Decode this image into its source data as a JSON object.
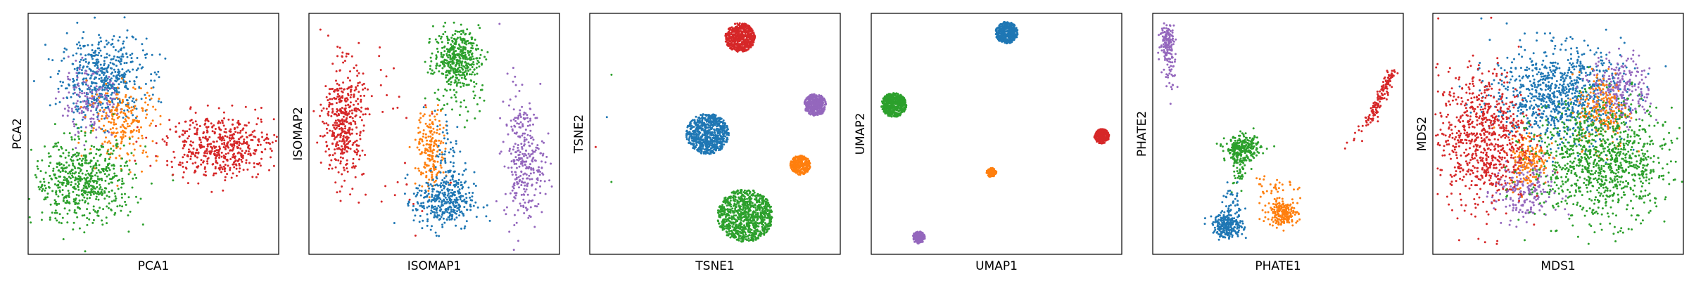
{
  "colors": {
    "blue": "#1f77b4",
    "orange": "#ff7f0e",
    "green": "#2ca02c",
    "red": "#d62728",
    "purple": "#9467bd"
  },
  "chart_data": [
    {
      "type": "scatter",
      "xlabel": "PCA1",
      "ylabel": "PCA2",
      "xlim": [
        0,
        100
      ],
      "ylim": [
        0,
        100
      ],
      "grid": false,
      "legend": "none",
      "clusters": [
        {
          "color": "blue",
          "cx": 30,
          "cy": 73,
          "sx": 8.5,
          "sy": 8.5,
          "n": 520,
          "shape": "gauss"
        },
        {
          "color": "purple",
          "cx": 25,
          "cy": 62,
          "sx": 6,
          "sy": 7,
          "n": 160,
          "shape": "gauss"
        },
        {
          "color": "orange",
          "cx": 38,
          "cy": 55,
          "sx": 7,
          "sy": 8,
          "n": 220,
          "shape": "gauss"
        },
        {
          "color": "green",
          "cx": 22,
          "cy": 30,
          "sx": 10,
          "sy": 8.5,
          "n": 600,
          "shape": "gauss"
        },
        {
          "color": "red",
          "cx": 77,
          "cy": 45,
          "sx": 11,
          "sy": 6.5,
          "n": 520,
          "shape": "gauss"
        }
      ]
    },
    {
      "type": "scatter",
      "xlabel": "ISOMAP1",
      "ylabel": "ISOMAP2",
      "xlim": [
        0,
        100
      ],
      "ylim": [
        0,
        100
      ],
      "grid": false,
      "legend": "none",
      "clusters": [
        {
          "color": "red",
          "cx": 14,
          "cy": 55,
          "sx": 4,
          "sy": 12,
          "n": 420,
          "shape": "gauss"
        },
        {
          "color": "red",
          "cx": 30,
          "cy": 48,
          "sx": 12,
          "sy": 28,
          "n": 40,
          "shape": "gauss"
        },
        {
          "color": "green",
          "cx": 59,
          "cy": 82,
          "sx": 4.5,
          "sy": 5.5,
          "n": 380,
          "shape": "gauss"
        },
        {
          "color": "green",
          "cx": 60,
          "cy": 70,
          "sx": 5,
          "sy": 8,
          "n": 70,
          "shape": "gauss"
        },
        {
          "color": "orange",
          "cx": 49,
          "cy": 43,
          "sx": 3,
          "sy": 8,
          "n": 200,
          "shape": "gauss"
        },
        {
          "color": "blue",
          "cx": 54,
          "cy": 22,
          "sx": 6,
          "sy": 6,
          "n": 360,
          "shape": "gauss"
        },
        {
          "color": "blue",
          "cx": 56,
          "cy": 40,
          "sx": 3,
          "sy": 10,
          "n": 60,
          "shape": "gauss"
        },
        {
          "color": "purple",
          "cx": 86,
          "cy": 38,
          "sx": 4,
          "sy": 12,
          "n": 280,
          "shape": "gauss"
        },
        {
          "color": "purple",
          "cx": 82,
          "cy": 60,
          "sx": 3,
          "sy": 10,
          "n": 30,
          "shape": "gauss"
        }
      ]
    },
    {
      "type": "scatter",
      "xlabel": "TSNE1",
      "ylabel": "TSNE2",
      "xlim": [
        0,
        100
      ],
      "ylim": [
        0,
        100
      ],
      "grid": false,
      "legend": "none",
      "clusters": [
        {
          "color": "red",
          "cx": 60,
          "cy": 90,
          "r": 6,
          "n": 520,
          "shape": "disk"
        },
        {
          "color": "purple",
          "cx": 90,
          "cy": 62,
          "r": 4.5,
          "n": 380,
          "shape": "disk"
        },
        {
          "color": "blue",
          "cx": 47,
          "cy": 50,
          "r": 8.5,
          "n": 700,
          "shape": "disk"
        },
        {
          "color": "orange",
          "cx": 84,
          "cy": 37,
          "r": 4,
          "n": 300,
          "shape": "disk"
        },
        {
          "color": "green",
          "cx": 62,
          "cy": 16,
          "r": 11,
          "n": 900,
          "shape": "disk"
        },
        {
          "color": "green",
          "cx": 10,
          "cy": 75,
          "sx": 1,
          "sy": 1,
          "n": 1,
          "shape": "gauss"
        },
        {
          "color": "green",
          "cx": 8,
          "cy": 30,
          "sx": 1,
          "sy": 1,
          "n": 1,
          "shape": "gauss"
        },
        {
          "color": "red",
          "cx": 4,
          "cy": 45,
          "sx": 1,
          "sy": 1,
          "n": 1,
          "shape": "gauss"
        },
        {
          "color": "blue",
          "cx": 7,
          "cy": 56,
          "sx": 1,
          "sy": 1,
          "n": 1,
          "shape": "gauss"
        }
      ]
    },
    {
      "type": "scatter",
      "xlabel": "UMAP1",
      "ylabel": "UMAP2",
      "xlim": [
        0,
        100
      ],
      "ylim": [
        0,
        100
      ],
      "grid": false,
      "legend": "none",
      "clusters": [
        {
          "color": "blue",
          "cx": 54,
          "cy": 92,
          "r": 4.5,
          "n": 450,
          "shape": "disk"
        },
        {
          "color": "green",
          "cx": 9,
          "cy": 62,
          "r": 5,
          "n": 500,
          "shape": "disk"
        },
        {
          "color": "red",
          "cx": 92,
          "cy": 49,
          "r": 3,
          "n": 260,
          "shape": "disk"
        },
        {
          "color": "orange",
          "cx": 48,
          "cy": 34,
          "r": 2,
          "n": 90,
          "shape": "disk"
        },
        {
          "color": "purple",
          "cx": 19,
          "cy": 7,
          "r": 2.5,
          "n": 150,
          "shape": "disk"
        }
      ]
    },
    {
      "type": "scatter",
      "xlabel": "PHATE1",
      "ylabel": "PHATE2",
      "xlim": [
        0,
        100
      ],
      "ylim": [
        0,
        100
      ],
      "grid": false,
      "legend": "none",
      "clusters": [
        {
          "color": "purple",
          "cx": 6,
          "cy": 88,
          "sx": 1.5,
          "sy": 4,
          "n": 140,
          "shape": "gauss"
        },
        {
          "color": "purple",
          "cx": 7,
          "cy": 76,
          "sx": 1.6,
          "sy": 4,
          "n": 30,
          "shape": "gauss"
        },
        {
          "color": "red",
          "cx": 91,
          "cy": 62,
          "x1": 86,
          "y1": 55,
          "x2": 96,
          "y2": 76,
          "w": 1.2,
          "n": 140,
          "shape": "line"
        },
        {
          "color": "red",
          "cx": 83,
          "cy": 50,
          "x1": 78,
          "y1": 46,
          "x2": 86,
          "y2": 55,
          "w": 1.5,
          "n": 12,
          "shape": "line"
        },
        {
          "color": "green",
          "cx": 36,
          "cy": 44,
          "sx": 3.5,
          "sy": 2.5,
          "n": 260,
          "shape": "gauss"
        },
        {
          "color": "green",
          "cx": 34,
          "cy": 35,
          "sx": 1.5,
          "sy": 5,
          "n": 60,
          "shape": "gauss"
        },
        {
          "color": "blue",
          "cx": 30,
          "cy": 12,
          "sx": 3,
          "sy": 2.5,
          "n": 240,
          "shape": "gauss"
        },
        {
          "color": "blue",
          "cx": 32,
          "cy": 20,
          "sx": 2,
          "sy": 4,
          "n": 40,
          "shape": "gauss"
        },
        {
          "color": "orange",
          "cx": 52,
          "cy": 17,
          "sx": 3,
          "sy": 2.5,
          "n": 200,
          "shape": "gauss"
        },
        {
          "color": "orange",
          "cx": 48,
          "cy": 28,
          "sx": 4,
          "sy": 4,
          "n": 40,
          "shape": "gauss"
        }
      ]
    },
    {
      "type": "scatter",
      "xlabel": "MDS1",
      "ylabel": "MDS2",
      "xlim": [
        0,
        100
      ],
      "ylim": [
        0,
        100
      ],
      "grid": false,
      "legend": "none",
      "clusters": [
        {
          "color": "blue",
          "cx": 50,
          "cy": 66,
          "sx": 13,
          "sy": 10,
          "n": 900,
          "shape": "gauss"
        },
        {
          "color": "purple",
          "cx": 75,
          "cy": 68,
          "sx": 6,
          "sy": 7,
          "n": 260,
          "shape": "gauss"
        },
        {
          "color": "purple",
          "cx": 36,
          "cy": 26,
          "sx": 6,
          "sy": 7,
          "n": 220,
          "shape": "gauss"
        },
        {
          "color": "orange",
          "cx": 68,
          "cy": 60,
          "sx": 5,
          "sy": 8,
          "n": 200,
          "shape": "gauss"
        },
        {
          "color": "orange",
          "cx": 38,
          "cy": 40,
          "sx": 4,
          "sy": 6,
          "n": 160,
          "shape": "gauss"
        },
        {
          "color": "red",
          "cx": 20,
          "cy": 48,
          "sx": 9,
          "sy": 14,
          "n": 780,
          "shape": "gauss"
        },
        {
          "color": "green",
          "cx": 68,
          "cy": 38,
          "sx": 14,
          "sy": 12,
          "n": 1000,
          "shape": "gauss"
        }
      ]
    }
  ]
}
